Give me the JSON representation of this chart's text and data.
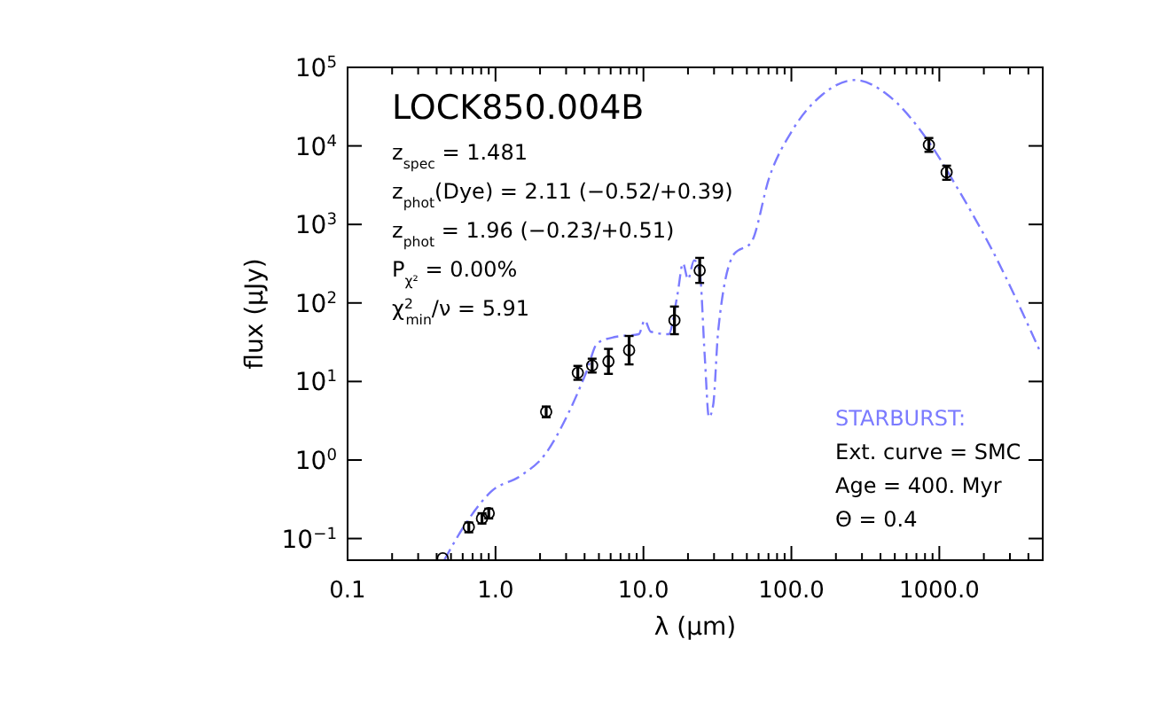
{
  "chart_data": {
    "type": "scatter",
    "title": "LOCK850.004B",
    "xlabel": "λ (μm)",
    "ylabel": "flux (μJy)",
    "log": "xy",
    "xlim": [
      0.1,
      5000
    ],
    "ylim": [
      0.053,
      100000
    ],
    "xticks": [
      0.1,
      {
        "value": 1,
        "label": "1.0"
      },
      {
        "value": 10,
        "label": "10.0"
      },
      {
        "value": 100,
        "label": "100.0"
      },
      {
        "value": 1000,
        "label": "1000.0"
      }
    ],
    "yticks": [
      {
        "value": 0.1,
        "label": "10$^{−1}$"
      },
      {
        "value": 1,
        "label": "10$^{0}$"
      },
      {
        "value": 10,
        "label": "10$^{1}$"
      },
      {
        "value": 100,
        "label": "10$^{2}$"
      },
      {
        "value": 1000,
        "label": "10$^{3}$"
      },
      {
        "value": 10000,
        "label": "10$^{4}$"
      },
      {
        "value": 100000,
        "label": "10$^{5}$"
      }
    ],
    "grid": false,
    "series": [
      {
        "type": "line",
        "color": "#7b7bff",
        "line_style": "dashed",
        "x": [
          0.45,
          0.65,
          0.94,
          1.48,
          2.14,
          3.1,
          4.1,
          4.9,
          6.5,
          9.3,
          10.2,
          11.2,
          14.8,
          17,
          18.5,
          20,
          22,
          24,
          26,
          27.7,
          29.6,
          32,
          41,
          53.5,
          71,
          102,
          162,
          270,
          445,
          850,
          1340,
          2350,
          4800
        ],
        "values": [
          0.053,
          0.17,
          0.4,
          0.63,
          1.15,
          3.9,
          13,
          31,
          37,
          40,
          60,
          43,
          40,
          130,
          320,
          200,
          350,
          250,
          20,
          3.5,
          5,
          44,
          420,
          590,
          4000,
          16000,
          45000,
          69000,
          45000,
          11200,
          2800,
          420,
          24
        ]
      },
      {
        "color": "#000000",
        "marker": "circle",
        "x": [
          0.44,
          0.66,
          0.81,
          0.9,
          2.2,
          3.6,
          4.5,
          5.8,
          8.0,
          16.2,
          24,
          850,
          1120
        ],
        "values": [
          0.056,
          0.14,
          0.18,
          0.21,
          4.1,
          12.9,
          16,
          18,
          25,
          60,
          260,
          10300,
          4600
        ],
        "errors": [
          null,
          [
            0.12,
            0.16
          ],
          [
            0.155,
            0.21
          ],
          [
            0.18,
            0.24
          ],
          [
            3.5,
            4.8
          ],
          [
            10.5,
            15.8
          ],
          [
            13,
            19.5
          ],
          [
            12.5,
            26
          ],
          [
            16.5,
            38
          ],
          [
            40,
            90
          ],
          [
            180,
            375
          ],
          [
            8400,
            12600
          ],
          [
            3700,
            5600
          ]
        ]
      }
    ],
    "annotations": [
      "z$_{spec}$ = 1.481",
      "z$_{phot}$(Dye) = 2.11 (−0.52/+0.39)",
      "z$_{phot}$ = 1.96 (−0.23/+0.51)",
      "P$_{χ²}$ = 0.00%",
      "χ$^{2}$$_{min}$/ν = 5.91",
      "STARBURST:",
      "Ext. curve = SMC",
      "Age = 400. Myr",
      "Θ = 0.4"
    ]
  }
}
